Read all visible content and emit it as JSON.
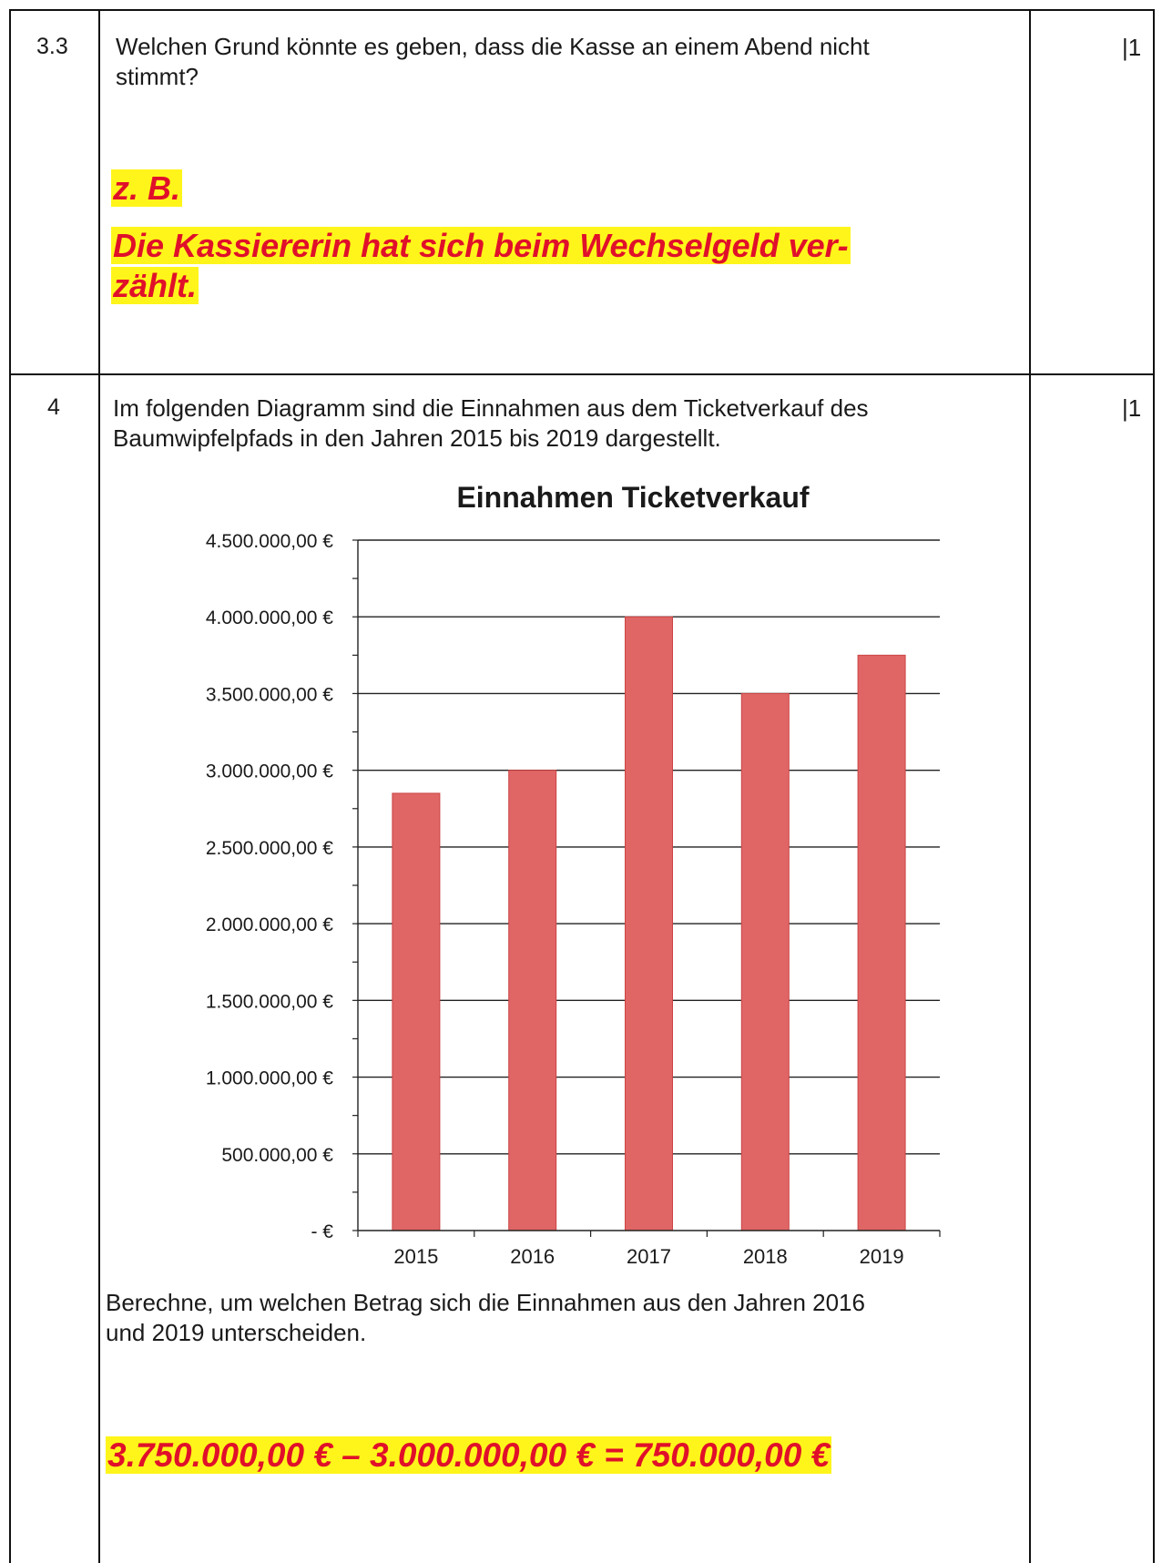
{
  "task_3_3": {
    "number": "3.3",
    "points": "|1",
    "question_line1": "Welchen Grund könnte es geben, dass die Kasse an einem Abend nicht",
    "question_line2": "stimmt?",
    "answer_prefix": "z. B.",
    "answer_line1": "Die Kassiererin hat sich beim Wechselgeld ver-",
    "answer_line2": "zählt."
  },
  "task_4": {
    "number": "4",
    "points": "|1",
    "intro_line1": "Im folgenden Diagramm sind die Einnahmen aus dem Ticketverkauf des",
    "intro_line2": "Baumwipfelpfads in den Jahren 2015 bis 2019 dargestellt.",
    "question_line1": "Berechne, um welchen Betrag sich die Einnahmen aus den Jahren 2016",
    "question_line2": "und 2019 unterscheiden.",
    "answer": "3.750.000,00 € – 3.000.000,00 € = 750.000,00 €"
  },
  "chart_data": {
    "type": "bar",
    "title": "Einnahmen Ticketverkauf",
    "categories": [
      "2015",
      "2016",
      "2017",
      "2018",
      "2019"
    ],
    "values": [
      2850000,
      3000000,
      4000000,
      3500000,
      3750000
    ],
    "ylim": [
      0,
      4500000
    ],
    "y_ticks": [
      0,
      500000,
      1000000,
      1500000,
      2000000,
      2500000,
      3000000,
      3500000,
      4000000,
      4500000
    ],
    "y_tick_labels": [
      "-   €",
      "500.000,00 €",
      "1.000.000,00 €",
      "1.500.000,00 €",
      "2.000.000,00 €",
      "2.500.000,00 €",
      "3.000.000,00 €",
      "3.500.000,00 €",
      "4.000.000,00 €",
      "4.500.000,00 €"
    ],
    "grid": true,
    "bar_color": "#e06666"
  }
}
